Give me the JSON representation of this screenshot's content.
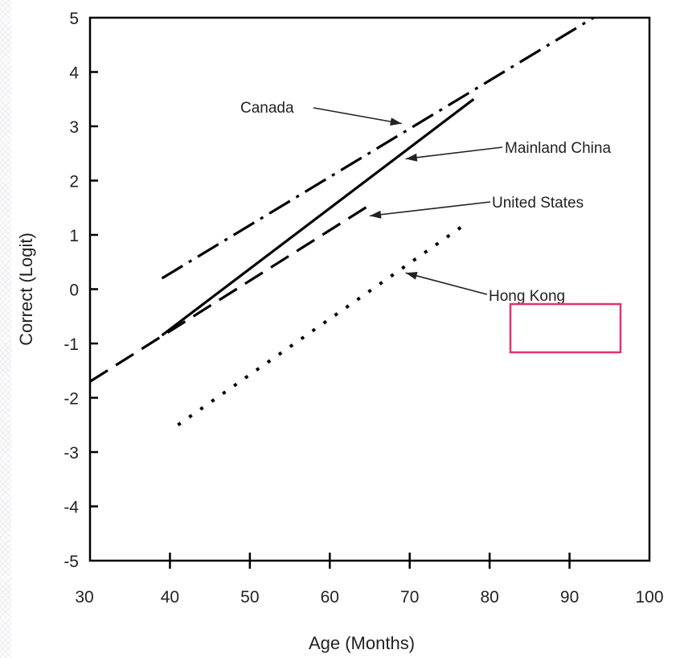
{
  "chart_data": {
    "type": "line",
    "xlabel": "Age (Months)",
    "ylabel": "Correct (Logit)",
    "xlim": [
      30,
      100
    ],
    "ylim": [
      -5,
      5
    ],
    "x_ticks": [
      "30",
      "40",
      "50",
      "60",
      "70",
      "80",
      "90",
      "100"
    ],
    "y_ticks": [
      "5",
      "4",
      "3",
      "2",
      "1",
      "0",
      "-1",
      "-2",
      "-3",
      "-4",
      "-5"
    ],
    "grid": false,
    "series": [
      {
        "name": "Canada",
        "style": "dash-dot",
        "x": [
          39,
          93
        ],
        "y": [
          0.2,
          5.0
        ]
      },
      {
        "name": "Mainland China",
        "style": "solid",
        "x": [
          39,
          78
        ],
        "y": [
          -0.85,
          3.5
        ]
      },
      {
        "name": "United States",
        "style": "dashed",
        "x": [
          30,
          65
        ],
        "y": [
          -1.7,
          1.55
        ]
      },
      {
        "name": "Hong Kong",
        "style": "dotted",
        "x": [
          41,
          77
        ],
        "y": [
          -2.5,
          1.2
        ]
      }
    ],
    "annotations": [
      {
        "text": "Canada",
        "points_to": {
          "x": 69,
          "y": 3.05
        }
      },
      {
        "text": "Mainland China",
        "points_to": {
          "x": 69.5,
          "y": 2.4
        }
      },
      {
        "text": "United States",
        "points_to": {
          "x": 65,
          "y": 1.35
        }
      },
      {
        "text": "Hong Kong",
        "points_to": {
          "x": 69.5,
          "y": 0.3
        }
      }
    ]
  },
  "colors": {
    "line": "#000000",
    "text": "#222222",
    "highlight": "#e8316b"
  }
}
